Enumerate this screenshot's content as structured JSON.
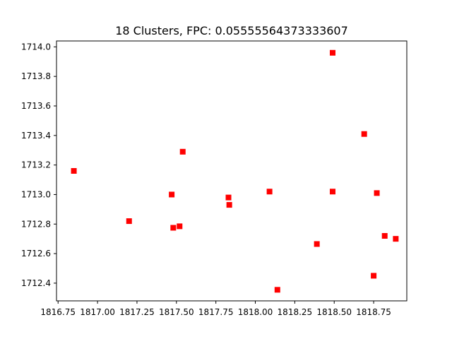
{
  "chart_data": {
    "type": "scatter",
    "title": "18 Clusters, FPC: 0.05555564373333607",
    "xlabel": "",
    "ylabel": "",
    "xlim": [
      1816.74,
      1818.96
    ],
    "ylim": [
      1712.28,
      1714.04
    ],
    "x_ticks": [
      1816.75,
      1817.0,
      1817.25,
      1817.5,
      1817.75,
      1818.0,
      1818.25,
      1818.5,
      1818.75
    ],
    "x_tick_labels": [
      "1816.75",
      "1817.00",
      "1817.25",
      "1817.50",
      "1817.75",
      "1818.00",
      "1818.25",
      "1818.50",
      "1818.75"
    ],
    "y_ticks": [
      1712.4,
      1712.6,
      1712.8,
      1713.0,
      1713.2,
      1713.4,
      1713.6,
      1713.8,
      1714.0
    ],
    "y_tick_labels": [
      "1712.4",
      "1712.6",
      "1712.8",
      "1713.0",
      "1713.2",
      "1713.4",
      "1713.6",
      "1713.8",
      "1714.0"
    ],
    "grid": false,
    "marker": "square",
    "color": "#ff0000",
    "points": [
      {
        "x": 1816.85,
        "y": 1713.16
      },
      {
        "x": 1817.2,
        "y": 1712.82
      },
      {
        "x": 1817.47,
        "y": 1713.0
      },
      {
        "x": 1817.48,
        "y": 1712.775
      },
      {
        "x": 1817.52,
        "y": 1712.785
      },
      {
        "x": 1817.54,
        "y": 1713.29
      },
      {
        "x": 1817.83,
        "y": 1712.98
      },
      {
        "x": 1817.835,
        "y": 1712.93
      },
      {
        "x": 1818.09,
        "y": 1713.02
      },
      {
        "x": 1818.14,
        "y": 1712.355
      },
      {
        "x": 1818.39,
        "y": 1712.665
      },
      {
        "x": 1818.49,
        "y": 1713.96
      },
      {
        "x": 1818.49,
        "y": 1713.02
      },
      {
        "x": 1818.69,
        "y": 1713.41
      },
      {
        "x": 1818.75,
        "y": 1712.45
      },
      {
        "x": 1818.77,
        "y": 1713.01
      },
      {
        "x": 1818.82,
        "y": 1712.72
      },
      {
        "x": 1818.89,
        "y": 1712.7
      }
    ]
  }
}
